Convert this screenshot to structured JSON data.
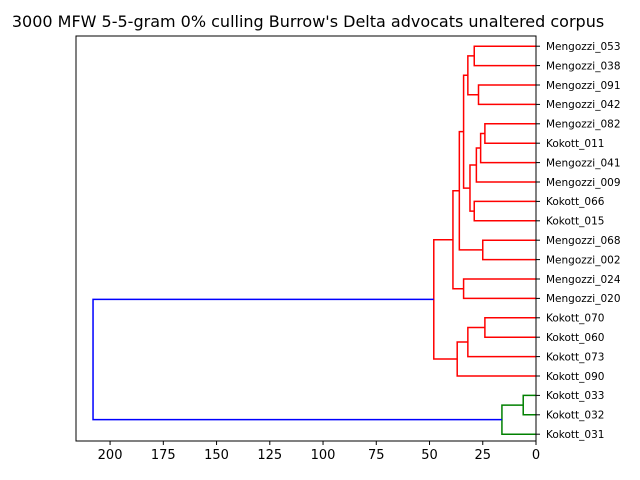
{
  "chart_data": {
    "type": "dendrogram",
    "title": "3000 MFW 5-5-gram 0% culling Burrow's Delta advocats unaltered corpus",
    "xlabel": "",
    "ylabel": "",
    "orientation": "left",
    "xlim": [
      216,
      0
    ],
    "x_ticks": [
      200,
      175,
      150,
      125,
      100,
      75,
      50,
      25,
      0
    ],
    "grid": false,
    "colors": {
      "cluster_1": "#ff0000",
      "cluster_2": "#008000",
      "link": "#0000ff"
    },
    "leaves": [
      "Mengozzi_053",
      "Mengozzi_038",
      "Mengozzi_091",
      "Mengozzi_042",
      "Mengozzi_082",
      "Kokott_011",
      "Mengozzi_041",
      "Mengozzi_009",
      "Kokott_066",
      "Kokott_015",
      "Mengozzi_068",
      "Mengozzi_002",
      "Mengozzi_024",
      "Mengozzi_020",
      "Kokott_070",
      "Kokott_060",
      "Kokott_073",
      "Kokott_090",
      "Kokott_033",
      "Kokott_032",
      "Kokott_031"
    ],
    "merges": [
      {
        "left": "L0",
        "right": "L1",
        "height": 29,
        "color": "#ff0000"
      },
      {
        "left": "L2",
        "right": "L3",
        "height": 27,
        "color": "#ff0000"
      },
      {
        "left": "N0",
        "right": "N1",
        "height": 32,
        "color": "#ff0000"
      },
      {
        "left": "L4",
        "right": "L5",
        "height": 24,
        "color": "#ff0000"
      },
      {
        "left": "N3",
        "right": "L6",
        "height": 26,
        "color": "#ff0000"
      },
      {
        "left": "N4",
        "right": "L7",
        "height": 28,
        "color": "#ff0000"
      },
      {
        "left": "L8",
        "right": "L9",
        "height": 29,
        "color": "#ff0000"
      },
      {
        "left": "N5",
        "right": "N6",
        "height": 31,
        "color": "#ff0000"
      },
      {
        "left": "N2",
        "right": "N7",
        "height": 34,
        "color": "#ff0000"
      },
      {
        "left": "L10",
        "right": "L11",
        "height": 25,
        "color": "#ff0000"
      },
      {
        "left": "N8",
        "right": "N9",
        "height": 36,
        "color": "#ff0000"
      },
      {
        "left": "L12",
        "right": "L13",
        "height": 34,
        "color": "#ff0000"
      },
      {
        "left": "N10",
        "right": "N11",
        "height": 39,
        "color": "#ff0000"
      },
      {
        "left": "L14",
        "right": "L15",
        "height": 24,
        "color": "#ff0000"
      },
      {
        "left": "N13",
        "right": "L16",
        "height": 32,
        "color": "#ff0000"
      },
      {
        "left": "N14",
        "right": "L17",
        "height": 37,
        "color": "#ff0000"
      },
      {
        "left": "N12",
        "right": "N15",
        "height": 48,
        "color": "#ff0000"
      },
      {
        "left": "L18",
        "right": "L19",
        "height": 6,
        "color": "#008000"
      },
      {
        "left": "N17",
        "right": "L20",
        "height": 16,
        "color": "#008000"
      },
      {
        "left": "N16",
        "right": "N18",
        "height": 208,
        "color": "#0000ff"
      }
    ]
  }
}
